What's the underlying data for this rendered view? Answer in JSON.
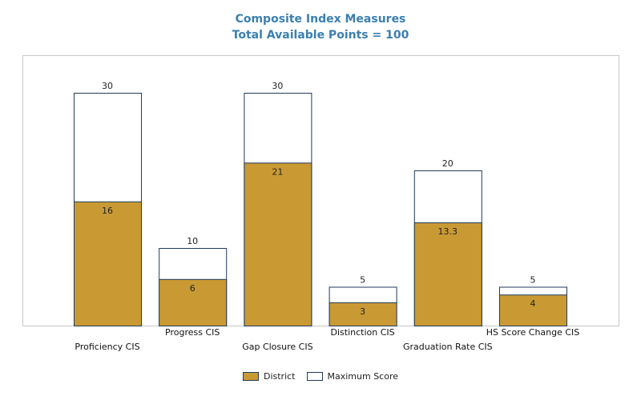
{
  "chart_data": {
    "type": "bar",
    "title": "Composite Index Measures",
    "subtitle": "Total Available Points = 100",
    "categories": [
      "Proficiency CIS",
      "Progress CIS",
      "Gap Closure CIS",
      "Distinction CIS",
      "Graduation Rate CIS",
      "HS Score Change CIS"
    ],
    "series": [
      {
        "name": "District",
        "values": [
          16,
          6,
          21,
          3,
          13.3,
          4
        ],
        "color": "#c99a33"
      },
      {
        "name": "Maximum Score",
        "values": [
          30,
          10,
          30,
          5,
          20,
          5
        ],
        "color": "#ffffff"
      }
    ],
    "ylim": [
      0,
      40
    ],
    "grid": false,
    "legend_position": "bottom-center",
    "bar_outline_color": "#1f3a5e",
    "frame_color": "#c8c8c8"
  }
}
